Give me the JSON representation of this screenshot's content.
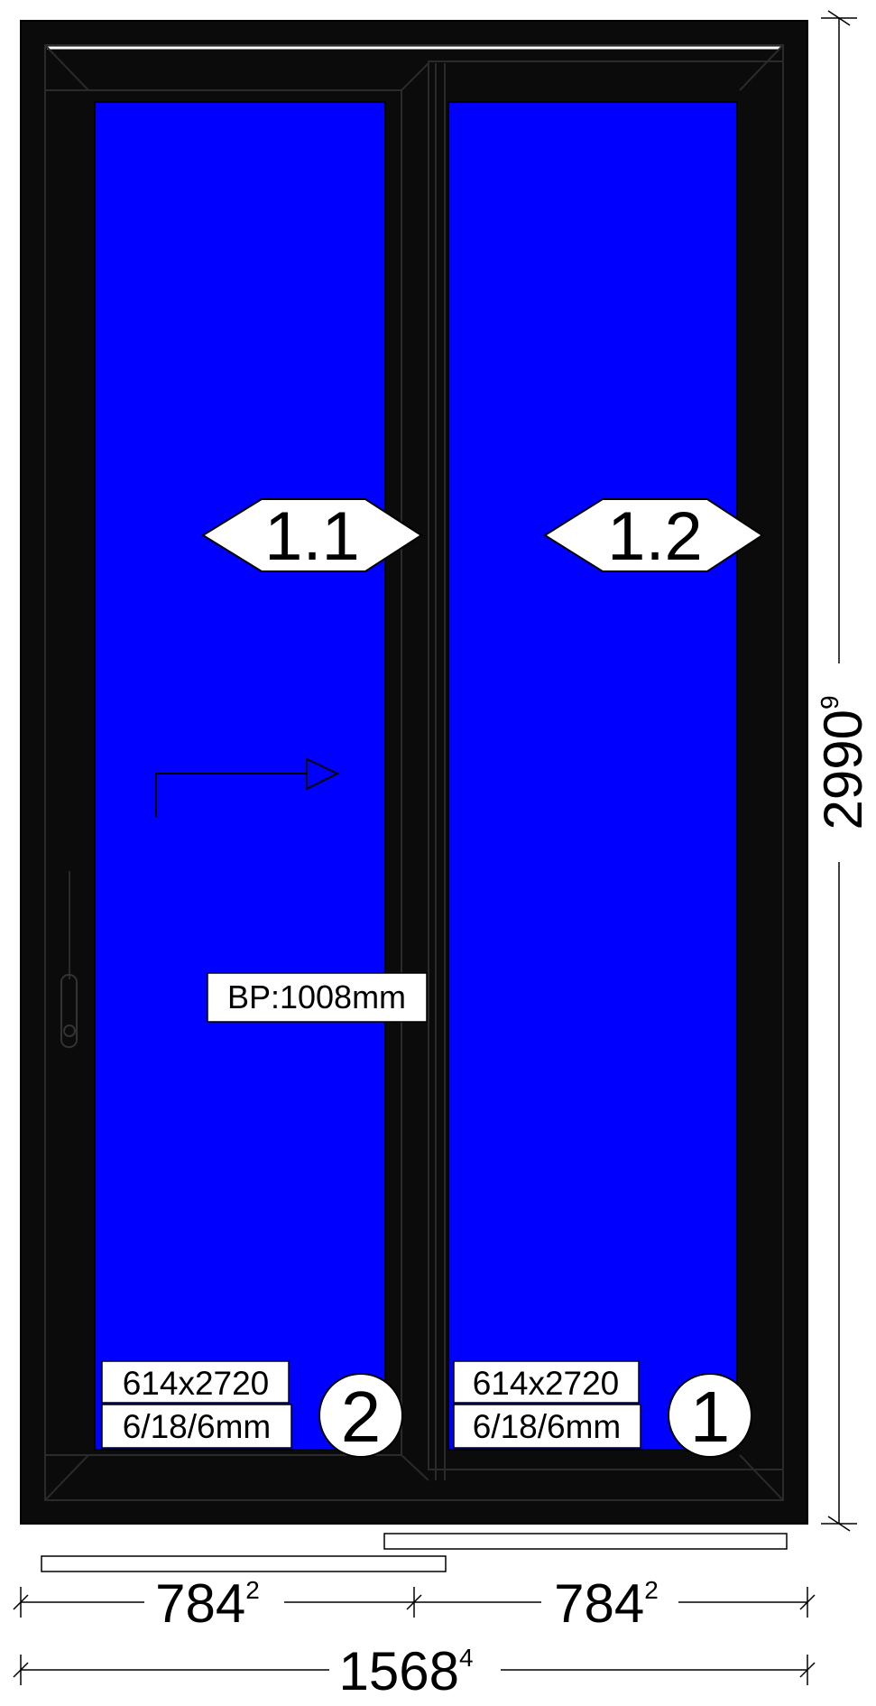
{
  "colors": {
    "frame": "#0b0b0b",
    "frame_edge": "#2a2a2a",
    "glass": "#0000ff",
    "label_bg": "#ffffff",
    "line": "#000000"
  },
  "panels": [
    {
      "tag": "1.1",
      "glass_size": "614x2720",
      "glass_spec": "6/18/6mm",
      "number": "2",
      "opening_arrow": "arrow-right-icon",
      "handle": "handle-icon",
      "handle_height": "BP:1008mm"
    },
    {
      "tag": "1.2",
      "glass_size": "614x2720",
      "glass_spec": "6/18/6mm",
      "number": "1"
    }
  ],
  "dimensions": {
    "height_main": "2990",
    "height_sup": "9",
    "width_left_main": "784",
    "width_left_sup": "2",
    "width_right_main": "784",
    "width_right_sup": "2",
    "total_main": "1568",
    "total_sup": "4"
  }
}
